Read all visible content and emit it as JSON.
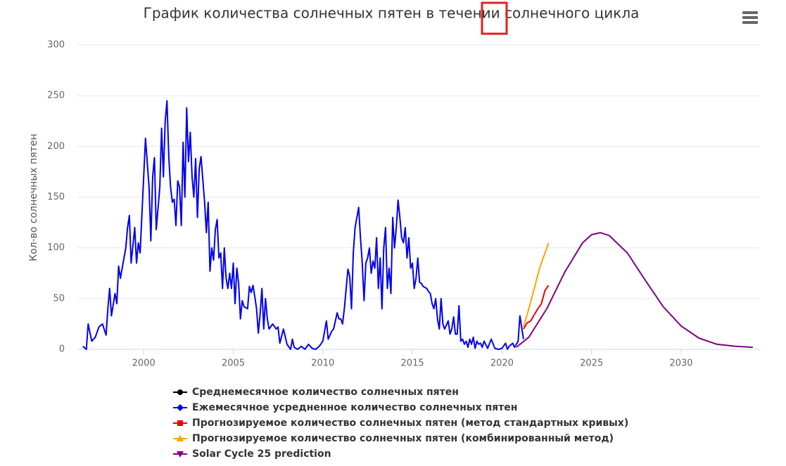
{
  "chart_data": {
    "type": "line",
    "title": "График количества солнечных пятен в течении солнечного цикла",
    "y_label": "Кол-во солнечных пятен",
    "xlim": [
      1996.3,
      2034.4
    ],
    "xticks": [
      2000,
      2005,
      2010,
      2015,
      2020,
      2025,
      2030
    ],
    "ylim": [
      0,
      300
    ],
    "yticks": [
      0,
      50,
      100,
      150,
      200,
      250,
      300
    ],
    "grid": true,
    "series": [
      {
        "name": "Среднемесячное количество солнечных пятен",
        "color": "#000000",
        "marker": "circle",
        "x": [],
        "values": []
      },
      {
        "name": "Ежемесячное усредненное количество солнечных пятен",
        "color": "#0000ee",
        "marker": "diamond",
        "x": [
          1996.6,
          1996.8,
          1996.9,
          1997.1,
          1997.3,
          1997.5,
          1997.7,
          1997.9,
          1998.0,
          1998.1,
          1998.2,
          1998.4,
          1998.5,
          1998.6,
          1998.7,
          1998.9,
          1999.0,
          1999.1,
          1999.2,
          1999.3,
          1999.5,
          1999.6,
          1999.7,
          1999.8,
          2000.0,
          2000.1,
          2000.3,
          2000.4,
          2000.5,
          2000.6,
          2000.7,
          2000.9,
          2001.0,
          2001.1,
          2001.2,
          2001.3,
          2001.4,
          2001.5,
          2001.6,
          2001.7,
          2001.8,
          2001.9,
          2002.0,
          2002.1,
          2002.2,
          2002.3,
          2002.4,
          2002.5,
          2002.6,
          2002.7,
          2002.8,
          2002.9,
          2003.0,
          2003.1,
          2003.2,
          2003.4,
          2003.5,
          2003.6,
          2003.7,
          2003.8,
          2003.9,
          2004.0,
          2004.1,
          2004.2,
          2004.3,
          2004.4,
          2004.5,
          2004.6,
          2004.7,
          2004.8,
          2004.9,
          2005.0,
          2005.1,
          2005.2,
          2005.3,
          2005.4,
          2005.5,
          2005.6,
          2005.8,
          2005.9,
          2006.0,
          2006.1,
          2006.2,
          2006.3,
          2006.4,
          2006.5,
          2006.6,
          2006.7,
          2006.8,
          2006.9,
          2007.0,
          2007.2,
          2007.4,
          2007.5,
          2007.6,
          2007.8,
          2008.0,
          2008.2,
          2008.3,
          2008.4,
          2008.6,
          2008.8,
          2009.0,
          2009.2,
          2009.4,
          2009.6,
          2009.8,
          2010.0,
          2010.1,
          2010.2,
          2010.3,
          2010.5,
          2010.6,
          2010.8,
          2010.9,
          2011.0,
          2011.1,
          2011.2,
          2011.4,
          2011.5,
          2011.6,
          2011.7,
          2011.8,
          2011.9,
          2012.0,
          2012.1,
          2012.2,
          2012.3,
          2012.4,
          2012.5,
          2012.6,
          2012.7,
          2012.8,
          2012.9,
          2013.0,
          2013.1,
          2013.2,
          2013.3,
          2013.4,
          2013.5,
          2013.6,
          2013.7,
          2013.8,
          2013.9,
          2014.0,
          2014.1,
          2014.2,
          2014.3,
          2014.4,
          2014.5,
          2014.6,
          2014.7,
          2014.8,
          2014.9,
          2015.0,
          2015.1,
          2015.2,
          2015.3,
          2015.4,
          2015.5,
          2015.6,
          2015.8,
          2015.9,
          2016.0,
          2016.1,
          2016.2,
          2016.3,
          2016.4,
          2016.5,
          2016.6,
          2016.7,
          2016.8,
          2016.9,
          2017.0,
          2017.1,
          2017.2,
          2017.3,
          2017.4,
          2017.5,
          2017.6,
          2017.7,
          2017.8,
          2017.9,
          2018.0,
          2018.1,
          2018.2,
          2018.3,
          2018.4,
          2018.5,
          2018.6,
          2018.7,
          2018.8,
          2018.9,
          2019.0,
          2019.2,
          2019.4,
          2019.6,
          2019.8,
          2020.0,
          2020.2,
          2020.3,
          2020.4,
          2020.6,
          2020.7,
          2020.9,
          2021.0,
          2021.2
        ],
        "values": [
          3,
          0,
          25,
          8,
          12,
          22,
          25,
          14,
          40,
          60,
          33,
          55,
          45,
          82,
          70,
          90,
          100,
          120,
          132,
          85,
          120,
          85,
          105,
          95,
          170,
          208,
          160,
          107,
          170,
          189,
          118,
          160,
          218,
          170,
          225,
          245,
          190,
          160,
          145,
          148,
          122,
          166,
          160,
          122,
          204,
          150,
          238,
          185,
          214,
          170,
          150,
          188,
          130,
          178,
          190,
          145,
          115,
          145,
          77,
          100,
          88,
          118,
          128,
          90,
          95,
          60,
          100,
          70,
          60,
          75,
          60,
          85,
          45,
          80,
          65,
          30,
          48,
          42,
          40,
          62,
          56,
          63,
          52,
          40,
          16,
          35,
          60,
          20,
          50,
          30,
          20,
          25,
          20,
          22,
          6,
          20,
          5,
          0,
          10,
          2,
          0,
          3,
          0,
          5,
          1,
          0,
          3,
          8,
          18,
          28,
          10,
          18,
          20,
          36,
          30,
          30,
          25,
          40,
          79,
          72,
          40,
          95,
          120,
          130,
          140,
          110,
          85,
          48,
          85,
          90,
          100,
          75,
          87,
          80,
          110,
          60,
          90,
          40,
          100,
          120,
          60,
          80,
          55,
          130,
          100,
          120,
          147,
          130,
          110,
          105,
          120,
          90,
          110,
          80,
          85,
          60,
          70,
          90,
          66,
          65,
          62,
          60,
          57,
          55,
          45,
          40,
          50,
          30,
          20,
          50,
          25,
          20,
          24,
          28,
          15,
          20,
          32,
          15,
          15,
          43,
          8,
          10,
          5,
          8,
          2,
          10,
          5,
          12,
          1,
          8,
          5,
          6,
          2,
          8,
          1,
          10,
          1,
          0,
          1,
          6,
          0,
          3,
          6,
          2,
          8,
          33,
          10
        ]
      },
      {
        "name": "Прогнозируемое количество солнечных пятен (метод стандартных кривых)",
        "color": "#ee0000",
        "marker": "square",
        "x": [
          2021.2,
          2021.4,
          2021.6,
          2021.8,
          2022.0,
          2022.2,
          2022.4,
          2022.6
        ],
        "values": [
          20,
          26,
          28,
          34,
          40,
          45,
          58,
          63
        ]
      },
      {
        "name": "Прогнозируемое количество солнечных пятен (комбинированный метод)",
        "color": "#ffa500",
        "marker": "triangle",
        "x": [
          2021.2,
          2021.5,
          2021.8,
          2022.1,
          2022.4,
          2022.6
        ],
        "values": [
          22,
          40,
          60,
          80,
          95,
          105
        ]
      },
      {
        "name": "Solar Cycle 25 prediction",
        "color": "#800080",
        "marker": "triangle-down",
        "x": [
          2020.8,
          2021.5,
          2022.5,
          2023.5,
          2024.5,
          2025.0,
          2025.5,
          2026.0,
          2027.0,
          2028.0,
          2029.0,
          2030.0,
          2031.0,
          2032.0,
          2033.0,
          2034.0
        ],
        "values": [
          2,
          12,
          40,
          76,
          105,
          113,
          115,
          112,
          95,
          68,
          42,
          23,
          11,
          5,
          3,
          2
        ]
      }
    ]
  }
}
